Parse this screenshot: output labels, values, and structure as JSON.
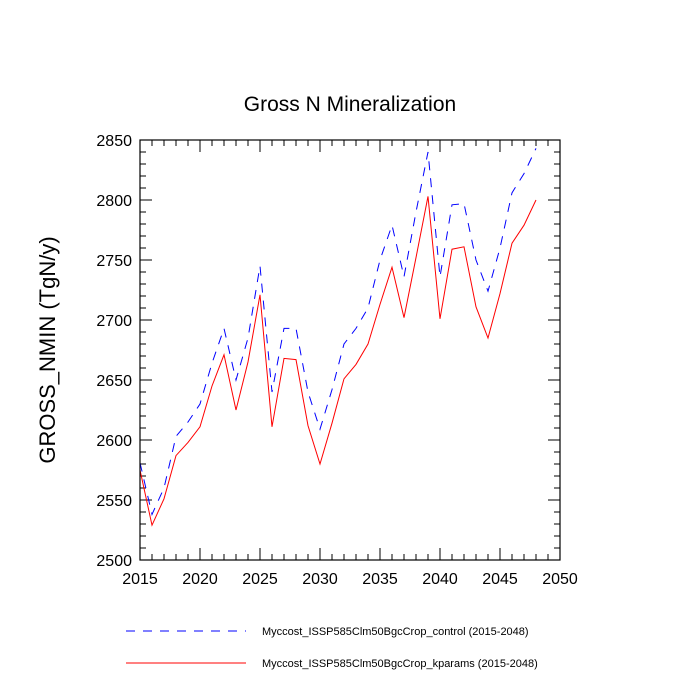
{
  "chart_data": {
    "type": "line",
    "title": "Gross N Mineralization",
    "xlabel": "",
    "ylabel": "GROSS_NMIN  (TgN/y)",
    "xlim": [
      2015,
      2050
    ],
    "ylim": [
      2500,
      2850
    ],
    "x_ticks": [
      2015,
      2020,
      2025,
      2030,
      2035,
      2040,
      2045,
      2050
    ],
    "y_ticks": [
      2500,
      2550,
      2600,
      2650,
      2700,
      2750,
      2800,
      2850
    ],
    "x_tick_labels": [
      "2015",
      "2020",
      "2025",
      "2030",
      "2035",
      "2040",
      "2045",
      "2050"
    ],
    "y_tick_labels": [
      "2500",
      "2550",
      "2600",
      "2650",
      "2700",
      "2750",
      "2800",
      "2850"
    ],
    "x": [
      2015,
      2016,
      2017,
      2018,
      2019,
      2020,
      2021,
      2022,
      2023,
      2024,
      2025,
      2026,
      2027,
      2028,
      2029,
      2030,
      2031,
      2032,
      2033,
      2034,
      2035,
      2036,
      2037,
      2038,
      2039,
      2040,
      2041,
      2042,
      2043,
      2044,
      2045,
      2046,
      2047,
      2048
    ],
    "series": [
      {
        "name": "Myccost_ISSP585Clm50BgcCrop_control (2015-2048)",
        "color": "#0000ff",
        "style": "dashed",
        "values": [
          2581,
          2538,
          2560,
          2603,
          2615,
          2630,
          2664,
          2693,
          2650,
          2685,
          2745,
          2640,
          2693,
          2693,
          2640,
          2609,
          2642,
          2680,
          2693,
          2710,
          2750,
          2779,
          2736,
          2790,
          2840,
          2736,
          2796,
          2797,
          2750,
          2724,
          2760,
          2806,
          2822,
          2843
        ]
      },
      {
        "name": "Myccost_ISSP585Clm50BgcCrop_kparams (2015-2048)",
        "color": "#ff0000",
        "style": "solid",
        "values": [
          2575,
          2529,
          2551,
          2587,
          2598,
          2611,
          2645,
          2671,
          2625,
          2665,
          2721,
          2611,
          2668,
          2667,
          2612,
          2580,
          2614,
          2651,
          2663,
          2680,
          2713,
          2744,
          2702,
          2752,
          2803,
          2701,
          2759,
          2761,
          2711,
          2685,
          2722,
          2764,
          2779,
          2800
        ]
      }
    ],
    "grid": false,
    "legend_position": "bottom"
  }
}
